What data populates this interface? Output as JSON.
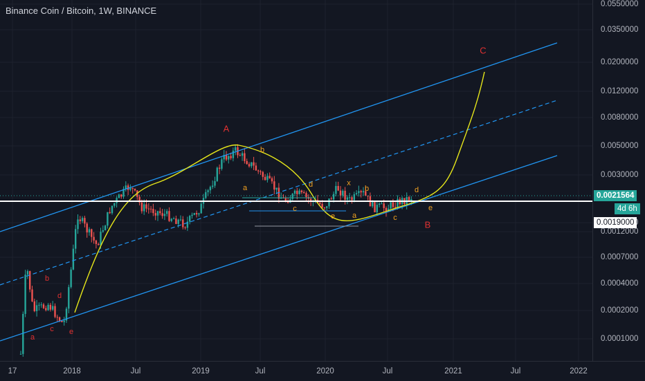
{
  "title": "Binance Coin / Bitcoin, 1W, BINANCE",
  "colors": {
    "background": "#131722",
    "up": "#26a69a",
    "down": "#ef5350",
    "channel": "#2196f3",
    "curve": "#e6e61a",
    "wave_major": "#e03131",
    "wave_minor": "#f0a020",
    "hline": "#ffffff"
  },
  "chart_data": {
    "type": "candlestick",
    "y_scale": "log",
    "y_ticks": [
      "0.0550000",
      "0.0350000",
      "0.0200000",
      "0.0120000",
      "0.0080000",
      "0.0050000",
      "0.0030000",
      "0.0019000",
      "0.0012000",
      "0.0007000",
      "0.0004000",
      "0.0002000",
      "0.0001000"
    ],
    "x_ticks": [
      "17",
      "2018",
      "Jul",
      "2019",
      "Jul",
      "2020",
      "Jul",
      "2021",
      "Jul",
      "2022"
    ],
    "last_price": "0.0021564",
    "countdown": "4d 6h",
    "horizontal_level": "0.0019000",
    "series": [
      {
        "x": "2017-10",
        "y": 0.0002
      },
      {
        "x": "2018-01",
        "y": 0.0012
      },
      {
        "x": "2018-06",
        "y": 0.0021
      },
      {
        "x": "2018-11",
        "y": 0.0014
      },
      {
        "x": "2019-03",
        "y": 0.0036
      },
      {
        "x": "2019-06",
        "y": 0.0041
      },
      {
        "x": "2019-12",
        "y": 0.0021
      },
      {
        "x": "2020-02",
        "y": 0.0024
      },
      {
        "x": "2020-05",
        "y": 0.0018
      },
      {
        "x": "2020-08",
        "y": 0.0021
      }
    ],
    "wave_labels_major": [
      "A",
      "B",
      "C"
    ],
    "wave_labels_minor": [
      "a",
      "b",
      "c",
      "d",
      "e",
      "a",
      "b",
      "c",
      "d",
      "e",
      "x",
      "a",
      "b",
      "c",
      "d",
      "e"
    ]
  }
}
